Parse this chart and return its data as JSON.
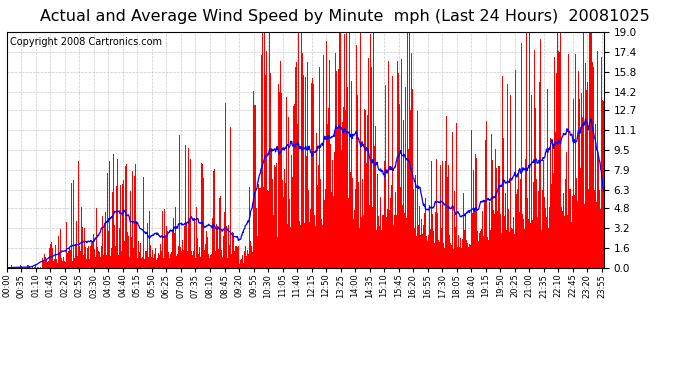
{
  "title": "Actual and Average Wind Speed by Minute  mph (Last 24 Hours)  20081025",
  "copyright": "Copyright 2008 Cartronics.com",
  "ylim": [
    0.0,
    19.0
  ],
  "yticks": [
    0.0,
    1.6,
    3.2,
    4.8,
    6.3,
    7.9,
    9.5,
    11.1,
    12.7,
    14.2,
    15.8,
    17.4,
    19.0
  ],
  "bar_color": "#ff0000",
  "line_color": "#0000ff",
  "bg_color": "#ffffff",
  "grid_color": "#bbbbbb",
  "title_fontsize": 11.5,
  "copyright_fontsize": 7,
  "n_points": 1440,
  "avg_window": 60,
  "x_labels": [
    "00:00",
    "00:35",
    "01:10",
    "01:45",
    "02:20",
    "02:55",
    "03:30",
    "04:05",
    "04:40",
    "05:15",
    "05:50",
    "06:25",
    "07:00",
    "07:35",
    "08:10",
    "08:45",
    "09:20",
    "09:55",
    "10:30",
    "11:05",
    "11:40",
    "12:15",
    "12:50",
    "13:25",
    "14:00",
    "14:35",
    "15:10",
    "15:45",
    "16:20",
    "16:55",
    "17:30",
    "18:05",
    "18:40",
    "19:15",
    "19:50",
    "20:25",
    "21:00",
    "21:35",
    "22:10",
    "22:45",
    "23:20",
    "23:55"
  ],
  "xtick_interval": 35
}
